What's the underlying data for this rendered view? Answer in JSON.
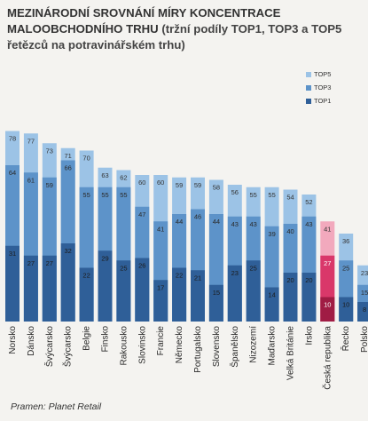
{
  "title": {
    "bold": "MEZINÁRODNÍ SROVNÁNÍ MÍRY KONCENTRACE MALOOBCHODNÍHO TRHU",
    "rest": " (tržní podíly TOP1, TOP3 a TOP5 řetězců na potravinářském trhu)"
  },
  "source": "Pramen: Planet Retail",
  "colors": {
    "top5": "#9cc3e6",
    "top3": "#5d93c9",
    "top1": "#2f5f98",
    "cz_top5": "#f2a9bd",
    "cz_top3": "#d9386a",
    "cz_top1": "#a01c44",
    "highlight_country": "Česká republika"
  },
  "chart_data": {
    "type": "bar",
    "categories": [
      "Norsko",
      "Dánsko",
      "Švýcarsko",
      "Švýcarsko",
      "Belgie",
      "Finsko",
      "Rakousko",
      "Slovinsko",
      "Francie",
      "Německo",
      "Portugalsko",
      "Slovensko",
      "Španělsko",
      "Nizozemí",
      "Maďarsko",
      "Velká Británie",
      "Irsko",
      "Česká republika",
      "Řecko",
      "Polsko"
    ],
    "series": [
      {
        "name": "TOP5",
        "values": [
          78,
          77,
          73,
          71,
          70,
          63,
          62,
          60,
          60,
          59,
          59,
          58,
          56,
          55,
          55,
          54,
          52,
          41,
          36,
          23
        ]
      },
      {
        "name": "TOP3",
        "values": [
          64,
          61,
          59,
          66,
          55,
          55,
          55,
          47,
          41,
          44,
          46,
          44,
          43,
          43,
          39,
          40,
          43,
          27,
          25,
          15
        ]
      },
      {
        "name": "TOP1",
        "values": [
          31,
          27,
          27,
          32,
          22,
          29,
          25,
          26,
          17,
          22,
          21,
          15,
          23,
          25,
          14,
          20,
          20,
          10,
          10,
          8
        ]
      }
    ],
    "legend": [
      "TOP5",
      "TOP3",
      "TOP1"
    ],
    "legend_position": "top-right",
    "ylim": [
      0,
      85
    ],
    "grid": false
  }
}
